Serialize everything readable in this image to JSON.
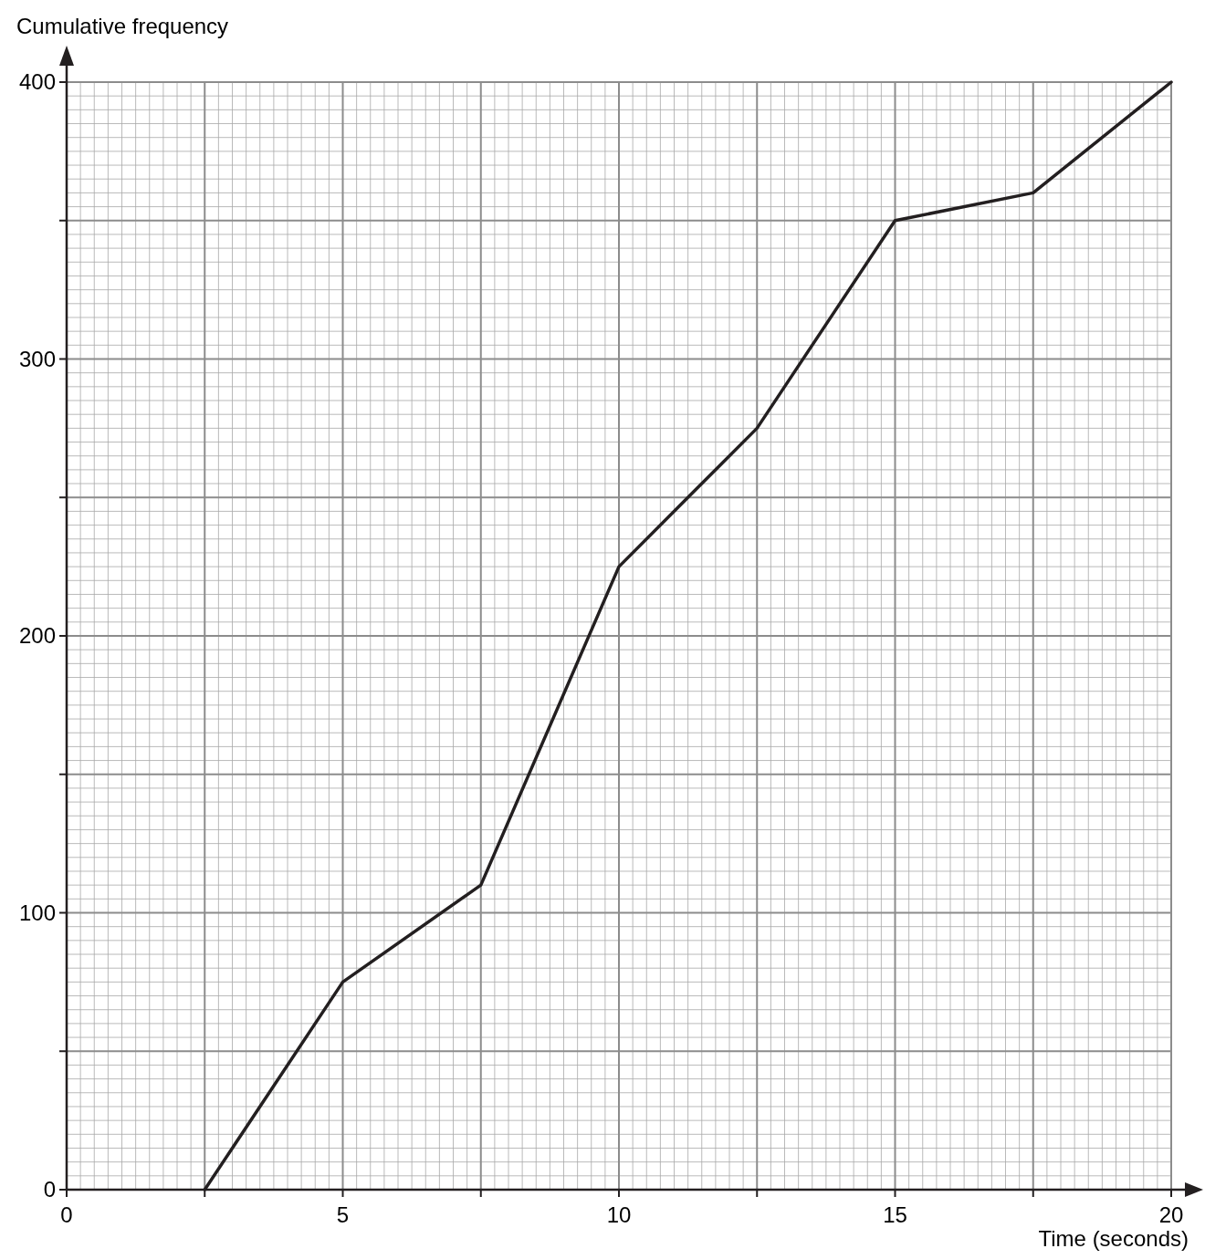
{
  "chart_data": {
    "type": "line",
    "xlabel": "Time (seconds)",
    "ylabel": "Cumulative frequency",
    "x": [
      2.5,
      5,
      7.5,
      10,
      12.5,
      15,
      17.5,
      20
    ],
    "series": [
      {
        "color": "#231f20",
        "values": [
          0,
          75,
          110,
          225,
          275,
          350,
          360,
          400
        ]
      }
    ],
    "xlim": [
      0,
      20
    ],
    "ylim": [
      0,
      400
    ],
    "xticks": [
      0,
      {
        "value": 2.5,
        "label": null
      },
      5,
      {
        "value": 7.5,
        "label": null
      },
      10,
      {
        "value": 12.5,
        "label": null
      },
      15,
      {
        "value": 17.5,
        "label": null
      },
      20
    ],
    "yticks": [
      0,
      {
        "value": 50,
        "label": null
      },
      100,
      {
        "value": 150,
        "label": null
      },
      200,
      {
        "value": 250,
        "label": null
      },
      300,
      {
        "value": 350,
        "label": null
      },
      400
    ],
    "grid": true,
    "marker": "none",
    "line_style": "solid"
  }
}
